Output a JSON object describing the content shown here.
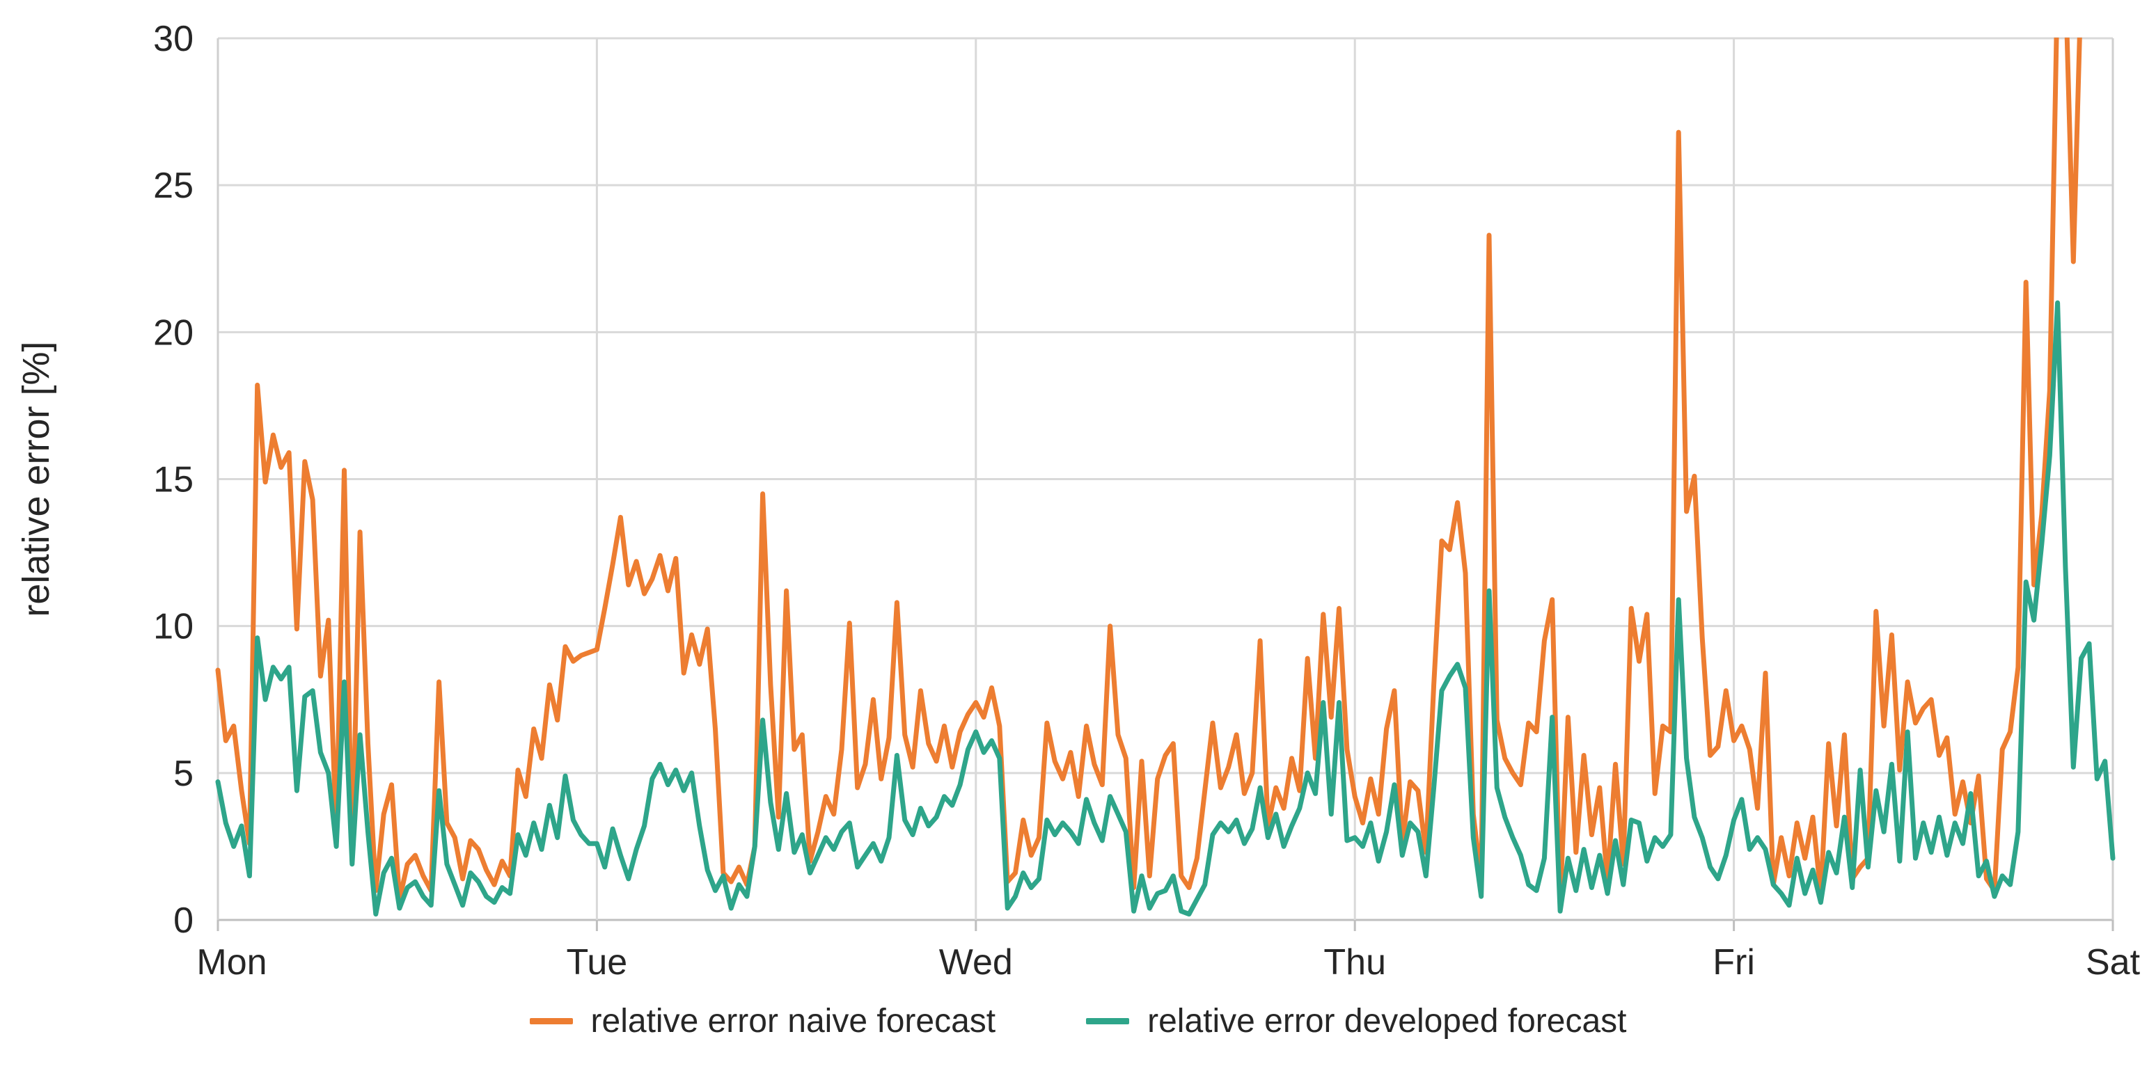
{
  "chart_data": {
    "type": "line",
    "title": "",
    "xlabel": "",
    "ylabel": "relative error [%]",
    "ylim": [
      0,
      30
    ],
    "y_ticks": [
      0,
      5,
      10,
      15,
      20,
      25,
      30
    ],
    "x_categories": [
      "Mon",
      "Tue",
      "Wed",
      "Thu",
      "Fri",
      "Sat"
    ],
    "points_per_day": 48,
    "grid": true,
    "legend_position": "bottom",
    "axis_color": "#bfbfbf",
    "grid_color": "#d9d9d9",
    "text_color": "#262626",
    "note_clipping": "naive forecast series exceeds 30 (clipped at plot top) twice just before Sat",
    "series": [
      {
        "name": "relative error naive forecast",
        "color": "#ED7D31",
        "values": [
          8.5,
          6.1,
          6.6,
          4.4,
          2.6,
          18.2,
          14.9,
          16.5,
          15.4,
          15.9,
          9.9,
          15.6,
          14.3,
          8.3,
          10.2,
          2.9,
          15.3,
          2.0,
          13.2,
          6.0,
          1.0,
          3.6,
          4.6,
          0.7,
          1.9,
          2.2,
          1.5,
          1.0,
          8.1,
          3.3,
          2.8,
          1.4,
          2.7,
          2.4,
          1.7,
          1.2,
          2.0,
          1.5,
          5.1,
          4.2,
          6.5,
          5.5,
          8.0,
          6.8,
          9.3,
          8.8,
          9.0,
          9.1,
          9.2,
          10.6,
          12.1,
          13.7,
          11.4,
          12.2,
          11.1,
          11.6,
          12.4,
          11.2,
          12.3,
          8.4,
          9.7,
          8.7,
          9.9,
          6.5,
          1.6,
          1.3,
          1.8,
          1.2,
          2.5,
          14.5,
          8.0,
          3.5,
          11.2,
          5.8,
          6.3,
          2.0,
          3.0,
          4.2,
          3.6,
          5.8,
          10.1,
          4.5,
          5.3,
          7.5,
          4.8,
          6.2,
          10.8,
          6.3,
          5.2,
          7.8,
          6.0,
          5.4,
          6.6,
          5.2,
          6.4,
          7.0,
          7.4,
          6.9,
          7.9,
          6.6,
          1.3,
          1.6,
          3.4,
          2.2,
          2.8,
          6.7,
          5.4,
          4.8,
          5.7,
          4.2,
          6.6,
          5.3,
          4.6,
          10.0,
          6.3,
          5.5,
          1.1,
          5.4,
          1.5,
          4.8,
          5.6,
          6.0,
          1.5,
          1.1,
          2.1,
          4.4,
          6.7,
          4.5,
          5.2,
          6.3,
          4.3,
          5.0,
          9.5,
          3.2,
          4.5,
          3.8,
          5.5,
          4.4,
          8.9,
          5.5,
          10.4,
          6.9,
          10.6,
          5.8,
          4.2,
          3.3,
          4.8,
          3.6,
          6.5,
          7.8,
          2.6,
          4.7,
          4.4,
          2.3,
          8.0,
          12.9,
          12.6,
          14.2,
          11.8,
          3.6,
          1.3,
          23.3,
          6.8,
          5.5,
          5.0,
          4.6,
          6.7,
          6.4,
          9.5,
          10.9,
          0.6,
          6.9,
          2.3,
          5.6,
          2.9,
          4.5,
          1.3,
          5.3,
          1.9,
          10.6,
          8.8,
          10.4,
          4.3,
          6.6,
          6.4,
          26.8,
          13.9,
          15.1,
          9.6,
          5.6,
          5.9,
          7.8,
          6.1,
          6.6,
          5.8,
          3.8,
          8.4,
          1.2,
          2.8,
          1.5,
          3.3,
          2.1,
          3.5,
          0.9,
          6.0,
          3.2,
          6.3,
          1.4,
          1.8,
          2.1,
          10.5,
          6.6,
          9.7,
          5.1,
          8.1,
          6.7,
          7.2,
          7.5,
          5.6,
          6.2,
          3.6,
          4.7,
          3.3,
          4.9,
          1.4,
          1.0,
          5.8,
          6.4,
          8.6,
          21.7,
          11.4,
          13.8,
          18.0,
          32,
          32,
          22.4,
          32,
          34,
          null,
          null,
          null
        ]
      },
      {
        "name": "relative error developed forecast",
        "color": "#2EA58A",
        "values": [
          4.7,
          3.3,
          2.5,
          3.2,
          1.5,
          9.6,
          7.5,
          8.6,
          8.2,
          8.6,
          4.4,
          7.6,
          7.8,
          5.7,
          5.0,
          2.5,
          8.1,
          1.9,
          6.3,
          3.0,
          0.2,
          1.6,
          2.1,
          0.4,
          1.1,
          1.3,
          0.8,
          0.5,
          4.4,
          1.9,
          1.2,
          0.5,
          1.6,
          1.3,
          0.8,
          0.6,
          1.1,
          0.9,
          2.9,
          2.2,
          3.3,
          2.4,
          3.9,
          2.8,
          4.9,
          3.4,
          2.9,
          2.6,
          2.6,
          1.8,
          3.1,
          2.2,
          1.4,
          2.4,
          3.2,
          4.8,
          5.3,
          4.6,
          5.1,
          4.4,
          5.0,
          3.2,
          1.7,
          1.0,
          1.5,
          0.4,
          1.2,
          0.8,
          2.5,
          6.8,
          4.0,
          2.4,
          4.3,
          2.3,
          2.9,
          1.6,
          2.2,
          2.8,
          2.4,
          3.0,
          3.3,
          1.8,
          2.2,
          2.6,
          2.0,
          2.8,
          5.6,
          3.4,
          2.9,
          3.8,
          3.2,
          3.5,
          4.2,
          3.9,
          4.6,
          5.8,
          6.4,
          5.7,
          6.1,
          5.5,
          0.4,
          0.8,
          1.6,
          1.1,
          1.4,
          3.4,
          2.9,
          3.3,
          3.0,
          2.6,
          4.1,
          3.3,
          2.7,
          4.2,
          3.6,
          3.0,
          0.3,
          1.5,
          0.4,
          0.9,
          1.0,
          1.5,
          0.3,
          0.2,
          0.7,
          1.2,
          2.9,
          3.3,
          3.0,
          3.4,
          2.6,
          3.1,
          4.5,
          2.8,
          3.6,
          2.5,
          3.2,
          3.8,
          5.0,
          4.3,
          7.4,
          3.6,
          7.4,
          2.7,
          2.8,
          2.5,
          3.3,
          2.0,
          3.0,
          4.6,
          2.2,
          3.3,
          3.0,
          1.5,
          4.5,
          7.8,
          8.3,
          8.7,
          7.9,
          2.8,
          0.8,
          11.2,
          4.5,
          3.5,
          2.8,
          2.2,
          1.2,
          1.0,
          2.1,
          6.9,
          0.3,
          2.1,
          1.0,
          2.4,
          1.1,
          2.2,
          0.9,
          2.7,
          1.2,
          3.4,
          3.3,
          2.0,
          2.8,
          2.5,
          2.9,
          10.9,
          5.5,
          3.5,
          2.8,
          1.8,
          1.4,
          2.2,
          3.4,
          4.1,
          2.4,
          2.8,
          2.4,
          1.2,
          0.9,
          0.5,
          2.1,
          0.9,
          1.7,
          0.6,
          2.3,
          1.6,
          3.5,
          1.1,
          5.1,
          1.8,
          4.4,
          3.0,
          5.3,
          2.0,
          6.4,
          2.1,
          3.3,
          2.3,
          3.5,
          2.2,
          3.3,
          2.6,
          4.3,
          1.5,
          2.0,
          0.8,
          1.5,
          1.2,
          3.0,
          11.5,
          10.2,
          12.8,
          15.8,
          21.0,
          12.0,
          5.2,
          8.9,
          9.4,
          4.8,
          5.4,
          2.1
        ]
      }
    ]
  }
}
